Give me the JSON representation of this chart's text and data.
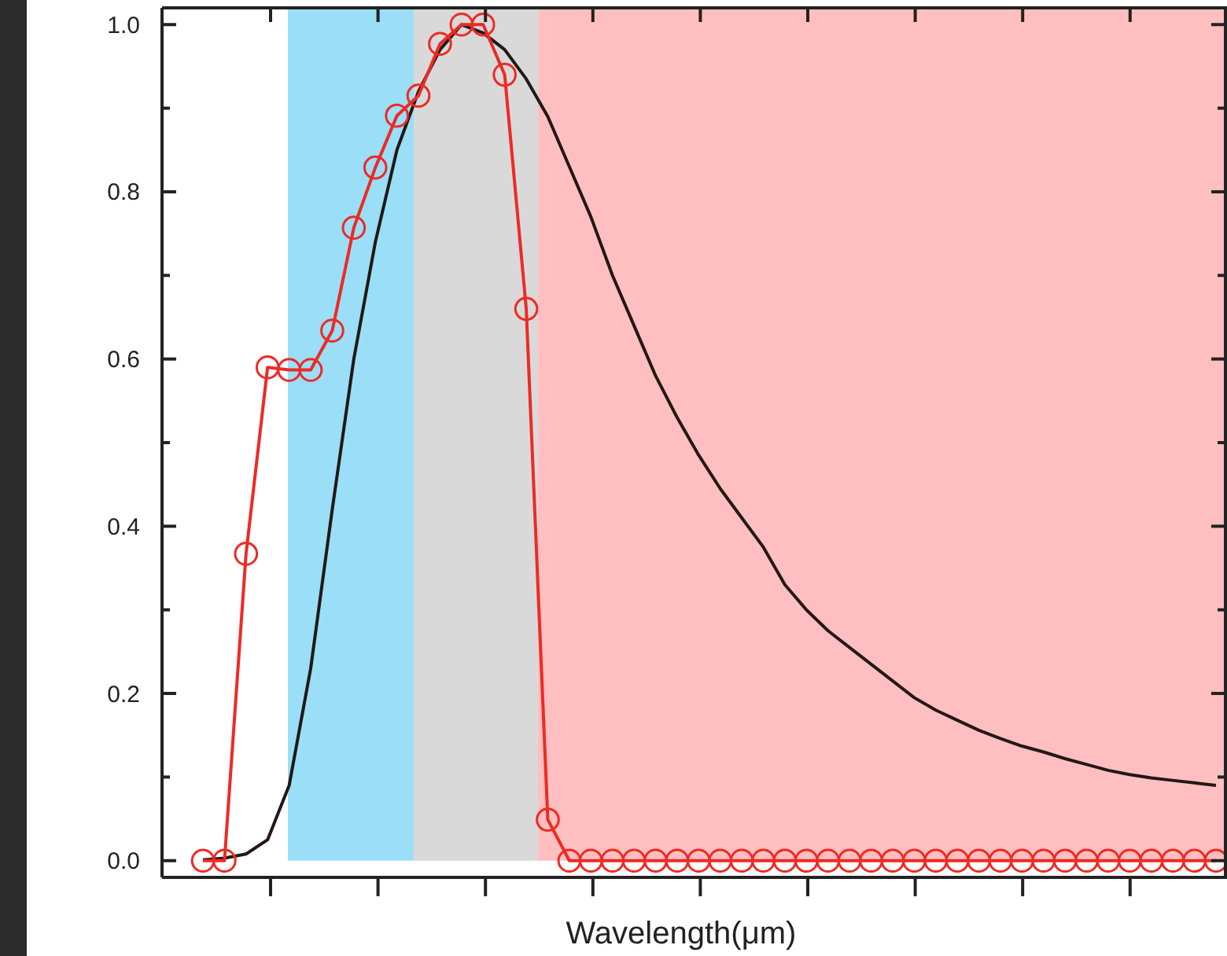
{
  "chart_data": {
    "type": "line",
    "xlabel": "Wavelength(μm)",
    "categories": [
      null,
      null,
      null,
      null,
      null,
      null,
      null,
      null,
      null,
      null,
      null,
      null,
      null,
      null,
      null,
      null,
      null,
      null,
      null,
      null,
      null,
      null,
      null,
      null,
      null,
      null,
      null,
      null,
      null,
      null,
      null,
      null,
      null,
      null,
      null,
      null,
      null,
      null,
      null,
      null,
      null,
      null,
      null,
      null,
      null,
      null,
      null,
      null
    ],
    "ylim": [
      -0.02,
      1.02
    ],
    "yticks": [
      {
        "value": 0,
        "label": "0.0"
      },
      {
        "value": 0.1,
        "label": null
      },
      {
        "value": 0.2,
        "label": "0.2"
      },
      {
        "value": 0.3,
        "label": null
      },
      {
        "value": 0.4,
        "label": "0.4"
      },
      {
        "value": 0.5,
        "label": null
      },
      {
        "value": 0.6,
        "label": "0.6"
      },
      {
        "value": 0.7,
        "label": null
      },
      {
        "value": 0.8,
        "label": "0.8"
      },
      {
        "value": 0.9,
        "label": null
      },
      {
        "value": 1,
        "label": "1.0"
      }
    ],
    "series": [
      {
        "color": "#231815",
        "marker": "none",
        "line_style": "solid",
        "values": [
          0.001,
          0.003,
          0.008,
          0.025,
          0.09,
          0.23,
          0.42,
          0.6,
          0.74,
          0.85,
          0.92,
          0.97,
          1.0,
          0.99,
          0.97,
          0.935,
          0.89,
          0.83,
          0.77,
          0.7,
          0.64,
          0.58,
          0.53,
          0.485,
          0.445,
          0.41,
          0.375,
          0.33,
          0.3,
          0.275,
          0.255,
          0.235,
          0.215,
          0.195,
          0.18,
          0.168,
          0.156,
          0.146,
          0.137,
          0.13,
          0.122,
          0.115,
          0.108,
          0.103,
          0.099,
          0.096,
          0.093,
          0.09
        ]
      },
      {
        "color": "#ee2a24",
        "marker": "circle",
        "line_style": "solid",
        "values": [
          0,
          0,
          0.367,
          0.59,
          0.587,
          0.587,
          0.634,
          0.757,
          0.829,
          0.891,
          0.915,
          0.977,
          1.0,
          1.0,
          0.94,
          0.66,
          0.049,
          0,
          0,
          0,
          0,
          0,
          0,
          0,
          0,
          0,
          0,
          0,
          0,
          0,
          0,
          0,
          0,
          0,
          0,
          0,
          0,
          0,
          0,
          0,
          0,
          0,
          0,
          0,
          0,
          0,
          0,
          0
        ]
      }
    ]
  }
}
